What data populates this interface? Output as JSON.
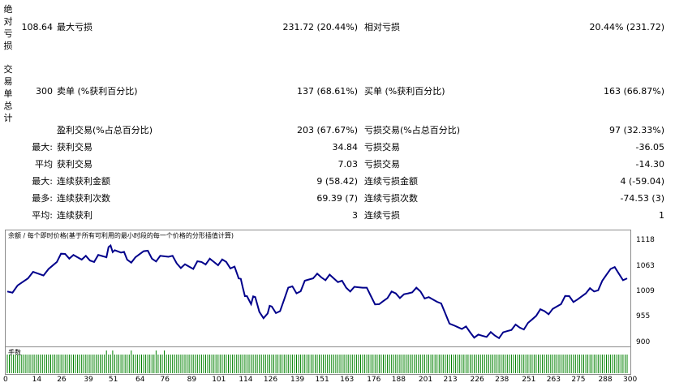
{
  "stats": {
    "abs_label": "绝对亏损",
    "trades_label": "交易单总计",
    "row_abs": {
      "left_value": "108.64",
      "mid_label": "最大亏损",
      "mid_value": "231.72 (20.44%)",
      "right_label": "相对亏损",
      "right_value": "20.44% (231.72)"
    },
    "row_trades": {
      "left_value": "300",
      "mid_label": "卖单 (%获利百分比)",
      "mid_value": "137 (68.61%)",
      "right_label": "买单 (%获利百分比)",
      "right_value": "163 (66.87%)"
    },
    "rows": [
      {
        "prefix": "",
        "mid_label": "盈利交易(%占总百分比)",
        "mid_value": "203 (67.67%)",
        "right_label": "亏损交易(%占总百分比)",
        "right_value": "97 (32.33%)"
      },
      {
        "prefix": "最大:",
        "mid_label": "获利交易",
        "mid_value": "34.84",
        "right_label": "亏损交易",
        "right_value": "-36.05"
      },
      {
        "prefix": "平均",
        "mid_label": "获利交易",
        "mid_value": "7.03",
        "right_label": "亏损交易",
        "right_value": "-14.30"
      },
      {
        "prefix": "最大:",
        "mid_label": "连续获利金额",
        "mid_value": "9 (58.42)",
        "right_label": "连续亏损金额",
        "right_value": "4 (-59.04)"
      },
      {
        "prefix": "最多:",
        "mid_label": "连续获利次数",
        "mid_value": "69.39 (7)",
        "right_label": "连续亏损次数",
        "right_value": "-74.53 (3)"
      },
      {
        "prefix": "平均:",
        "mid_label": "连续获利",
        "mid_value": "3",
        "right_label": "连续亏损",
        "right_value": "1"
      }
    ]
  },
  "chart_data": {
    "type": "line",
    "title": "余额 / 每个即时价格(基于所有可利用的最小时段的每一个价格的分形插值计算)",
    "y_ticks": [
      "1118",
      "1063",
      "1009",
      "955",
      "900"
    ],
    "ylim": [
      900,
      1118
    ],
    "x_ticks": [
      "0",
      "14",
      "26",
      "39",
      "51",
      "64",
      "76",
      "89",
      "101",
      "114",
      "126",
      "139",
      "151",
      "163",
      "176",
      "188",
      "201",
      "213",
      "226",
      "238",
      "251",
      "263",
      "275",
      "288",
      "300"
    ],
    "xlim": [
      0,
      300
    ],
    "line_color": "#00008b",
    "series": [
      {
        "x": [
          0,
          5,
          10,
          15,
          20,
          24,
          28,
          32,
          36,
          40,
          44,
          48,
          50,
          52,
          55,
          58,
          62,
          66,
          70,
          74,
          78,
          82,
          86,
          90,
          94,
          98,
          102,
          106,
          110,
          112,
          114,
          116,
          118,
          120,
          124,
          126,
          128,
          132,
          136,
          140,
          144,
          148,
          152,
          156,
          160,
          164,
          168,
          172,
          176,
          180,
          184,
          188,
          192,
          196,
          200,
          204,
          208,
          212,
          216,
          220,
          224,
          228,
          232,
          236,
          240,
          244,
          248,
          252,
          256,
          260,
          264,
          268,
          272,
          276,
          280,
          284,
          288,
          292,
          296,
          300
        ],
        "y": [
          1012,
          1025,
          1040,
          1050,
          1060,
          1075,
          1092,
          1090,
          1080,
          1078,
          1090,
          1085,
          1110,
          1100,
          1095,
          1080,
          1085,
          1098,
          1082,
          1088,
          1086,
          1072,
          1070,
          1060,
          1075,
          1082,
          1068,
          1075,
          1065,
          1040,
          1020,
          1002,
          985,
          1000,
          955,
          965,
          980,
          970,
          1020,
          1008,
          1035,
          1040,
          1042,
          1048,
          1032,
          1020,
          1022,
          1020,
          1002,
          985,
          998,
          1008,
          1006,
          1010,
          1012,
          1000,
          990,
          965,
          940,
          932,
          925,
          920,
          915,
          918,
          925,
          930,
          935,
          945,
          960,
          970,
          975,
          985,
          1002,
          995,
          1008,
          1012,
          1035,
          1060,
          1050,
          1040
        ]
      }
    ],
    "volume_title": "手数",
    "bar_color": "#008000"
  }
}
